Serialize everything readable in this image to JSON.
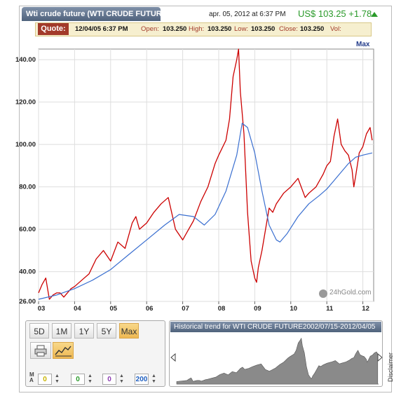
{
  "header": {
    "title": "Wti crude future (WTI CRUDE FUTURE",
    "date": "apr. 05, 2012 at 6:37 PM",
    "price": "US$ 103.25 +1.78",
    "up_color": "#2a9a2a"
  },
  "quote": {
    "tag": "Quote:",
    "datetime": "12/04/05 6:37 PM",
    "open_label": "Open:",
    "open_value": "103.250",
    "high_label": "High:",
    "high_value": "103.250",
    "low_label": "Low:",
    "low_value": "103.250",
    "close_label": "Close:",
    "close_value": "103.250",
    "vol_label": "Vol:"
  },
  "max_link": "Max",
  "watermark": "24hGold.com",
  "chart_data": {
    "type": "line",
    "title": "",
    "xlabel": "",
    "ylabel": "",
    "ylim": [
      26,
      145
    ],
    "xlim": [
      2003.0,
      2012.3
    ],
    "y_ticks": [
      "26.00",
      "40.00",
      "60.00",
      "80.00",
      "100.00",
      "120.00",
      "140.00"
    ],
    "y_tick_values": [
      26,
      40,
      60,
      80,
      100,
      120,
      140
    ],
    "x_ticks": [
      "03",
      "04",
      "05",
      "06",
      "07",
      "08",
      "09",
      "10",
      "11",
      "12"
    ],
    "x_tick_values": [
      2003,
      2004,
      2005,
      2006,
      2007,
      2008,
      2009,
      2010,
      2011,
      2012
    ],
    "grid": true,
    "series": [
      {
        "color": "#cc0000",
        "x": [
          2003.0,
          2003.1,
          2003.2,
          2003.3,
          2003.4,
          2003.5,
          2003.6,
          2003.7,
          2003.8,
          2003.9,
          2004.0,
          2004.2,
          2004.4,
          2004.6,
          2004.8,
          2005.0,
          2005.2,
          2005.4,
          2005.6,
          2005.7,
          2005.8,
          2006.0,
          2006.2,
          2006.4,
          2006.6,
          2006.8,
          2007.0,
          2007.1,
          2007.3,
          2007.5,
          2007.7,
          2007.9,
          2008.0,
          2008.2,
          2008.3,
          2008.4,
          2008.5,
          2008.55,
          2008.6,
          2008.7,
          2008.8,
          2008.9,
          2009.0,
          2009.05,
          2009.1,
          2009.2,
          2009.3,
          2009.4,
          2009.5,
          2009.6,
          2009.8,
          2010.0,
          2010.2,
          2010.4,
          2010.5,
          2010.7,
          2010.9,
          2011.0,
          2011.1,
          2011.2,
          2011.3,
          2011.4,
          2011.5,
          2011.6,
          2011.7,
          2011.75,
          2011.8,
          2011.9,
          2012.0,
          2012.1,
          2012.2,
          2012.26
        ],
        "values": [
          30,
          34,
          37,
          27,
          29,
          30,
          30,
          28,
          30,
          32,
          33,
          36,
          39,
          46,
          50,
          45,
          54,
          51,
          63,
          66,
          60,
          63,
          68,
          72,
          75,
          60,
          55,
          58,
          64,
          73,
          80,
          91,
          95,
          102,
          112,
          132,
          140,
          145,
          125,
          105,
          68,
          45,
          37,
          35,
          42,
          50,
          60,
          70,
          68,
          72,
          77,
          80,
          84,
          75,
          77,
          80,
          86,
          90,
          92,
          104,
          112,
          100,
          97,
          95,
          88,
          80,
          85,
          96,
          99,
          105,
          108,
          102
        ]
      },
      {
        "color": "#3a6fd0",
        "x": [
          2003.0,
          2003.5,
          2004.0,
          2004.5,
          2005.0,
          2005.5,
          2006.0,
          2006.5,
          2006.9,
          2007.3,
          2007.6,
          2007.9,
          2008.2,
          2008.5,
          2008.65,
          2008.8,
          2009.0,
          2009.2,
          2009.4,
          2009.6,
          2009.7,
          2009.9,
          2010.2,
          2010.5,
          2010.8,
          2011.0,
          2011.2,
          2011.4,
          2011.6,
          2011.8,
          2012.0,
          2012.26
        ],
        "values": [
          27,
          29,
          32,
          36,
          41,
          48,
          55,
          62,
          67,
          66,
          62,
          67,
          78,
          95,
          110,
          108,
          96,
          78,
          62,
          55,
          54,
          58,
          66,
          72,
          76,
          79,
          83,
          87,
          91,
          94,
          95,
          96
        ]
      }
    ]
  },
  "range_buttons": [
    "5D",
    "1M",
    "1Y",
    "5Y",
    "Max"
  ],
  "active_range": "Max",
  "ma_label": "M A",
  "ma_values": [
    "0",
    "0",
    "0",
    "200"
  ],
  "ma_colors": [
    "#c8b400",
    "#2a9a2a",
    "#8a3ab0",
    "#1f5fbf"
  ],
  "history": {
    "title": "Historical trend for WTI CRUDE FUTURE2002/07/15-2012/04/05"
  },
  "disclaimer": "Disclaimer"
}
